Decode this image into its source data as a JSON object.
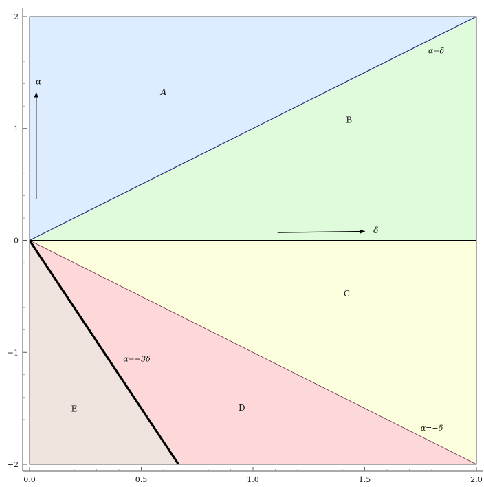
{
  "chart_data": {
    "type": "area",
    "title": "",
    "xlim": [
      0,
      2
    ],
    "ylim": [
      -2,
      2
    ],
    "grid": false,
    "x_ticks": [
      {
        "value": 0.0,
        "label": "0.0"
      },
      {
        "value": 0.5,
        "label": "0.5"
      },
      {
        "value": 1.0,
        "label": "1.0"
      },
      {
        "value": 1.5,
        "label": "1.5"
      },
      {
        "value": 2.0,
        "label": "2.0"
      }
    ],
    "y_ticks": [
      {
        "value": -2,
        "label": "−2"
      },
      {
        "value": -1,
        "label": "−1"
      },
      {
        "value": 0,
        "label": "0"
      },
      {
        "value": 1,
        "label": "1"
      },
      {
        "value": 2,
        "label": "2"
      }
    ],
    "regions": [
      {
        "label": "A",
        "color": "#ddecfe",
        "polygon": [
          [
            0,
            0
          ],
          [
            0,
            2
          ],
          [
            2,
            2
          ]
        ],
        "label_at": [
          0.6,
          1.3
        ],
        "italic": true
      },
      {
        "label": "B",
        "color": "#dffbdc",
        "polygon": [
          [
            0,
            0
          ],
          [
            2,
            2
          ],
          [
            2,
            0
          ]
        ],
        "label_at": [
          1.43,
          1.05
        ],
        "italic": false
      },
      {
        "label": "C",
        "color": "#fdfedb",
        "polygon": [
          [
            0,
            0
          ],
          [
            2,
            0
          ],
          [
            2,
            -2
          ]
        ],
        "label_at": [
          1.42,
          -0.5
        ],
        "italic": false
      },
      {
        "label": "D",
        "color": "#fed8d9",
        "polygon": [
          [
            0,
            0
          ],
          [
            2,
            -2
          ],
          [
            0.6667,
            -2
          ]
        ],
        "label_at": [
          0.95,
          -1.52
        ],
        "italic": false
      },
      {
        "label": "E",
        "color": "#efe3de",
        "polygon": [
          [
            0,
            0
          ],
          [
            0.6667,
            -2
          ],
          [
            0,
            -2
          ]
        ],
        "label_at": [
          0.2,
          -1.53
        ],
        "italic": false
      }
    ],
    "boundary_lines": [
      {
        "label": "α=δ",
        "from": [
          0,
          0
        ],
        "to": [
          2,
          2
        ],
        "color": "#2b2a7a",
        "width": 1.2,
        "label_at": [
          1.82,
          1.67
        ]
      },
      {
        "label": "α=−δ",
        "from": [
          0,
          0
        ],
        "to": [
          2,
          -2
        ],
        "color": "#4a3040",
        "width": 0.8,
        "label_at": [
          1.8,
          -1.7
        ]
      },
      {
        "label": "α=−3δ",
        "from": [
          0,
          0
        ],
        "to": [
          0.6667,
          -2
        ],
        "color": "#000000",
        "width": 3.2,
        "label_at": [
          0.48,
          -1.08
        ]
      },
      {
        "label": "",
        "from": [
          0,
          0
        ],
        "to": [
          2,
          0
        ],
        "color": "#000000",
        "width": 1.0
      }
    ],
    "annotations": [
      {
        "label": "α",
        "arrow_from": [
          0.03,
          0.37
        ],
        "arrow_to": [
          0.03,
          1.32
        ],
        "label_at": [
          0.04,
          1.42
        ]
      },
      {
        "label": "δ",
        "arrow_from": [
          1.11,
          0.07
        ],
        "arrow_to": [
          1.5,
          0.08
        ],
        "label_at": [
          1.55,
          0.09
        ]
      }
    ]
  }
}
